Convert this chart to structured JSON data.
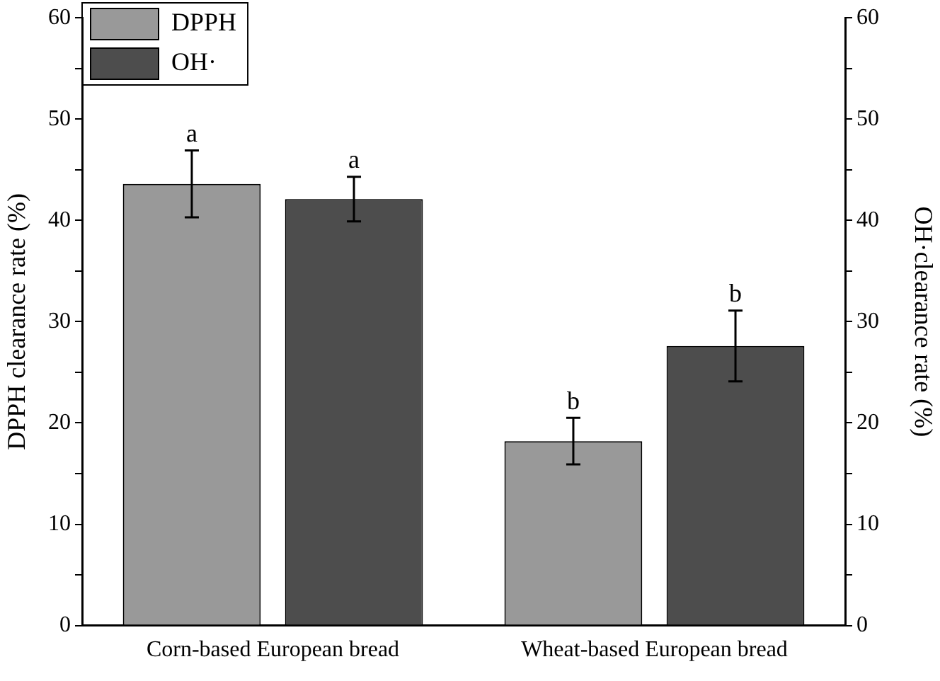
{
  "chart_data": {
    "type": "bar",
    "ylabel": "DPPH clearance rate (%)",
    "y2label": "OH·clearance rate (%)",
    "categories": [
      "Corn-based European bread",
      "Wheat-based European bread"
    ],
    "series": [
      {
        "name": "DPPH",
        "color": "#999999",
        "values": [
          43.6,
          18.2
        ],
        "errors": [
          3.3,
          2.3
        ]
      },
      {
        "name": "OH·",
        "color": "#4d4d4d",
        "values": [
          42.1,
          27.6
        ],
        "errors": [
          2.2,
          3.5
        ],
        "axis": "y2"
      }
    ],
    "ylim": [
      0,
      60
    ],
    "yticks": [
      0,
      {
        "value": 5,
        "label": null
      },
      10,
      {
        "value": 15,
        "label": null
      },
      20,
      {
        "value": 25,
        "label": null
      },
      30,
      {
        "value": 35,
        "label": null
      },
      40,
      {
        "value": 45,
        "label": null
      },
      50,
      {
        "value": 55,
        "label": null
      },
      60
    ],
    "y2lim": [
      0,
      60
    ],
    "y2ticks": [
      0,
      {
        "value": 5,
        "label": null
      },
      10,
      {
        "value": 15,
        "label": null
      },
      20,
      {
        "value": 25,
        "label": null
      },
      30,
      {
        "value": 35,
        "label": null
      },
      40,
      {
        "value": 45,
        "label": null
      },
      50,
      {
        "value": 55,
        "label": null
      },
      60
    ],
    "annotations": [
      "a",
      "a",
      "b",
      "b"
    ],
    "legend": "top left",
    "grid": false
  }
}
